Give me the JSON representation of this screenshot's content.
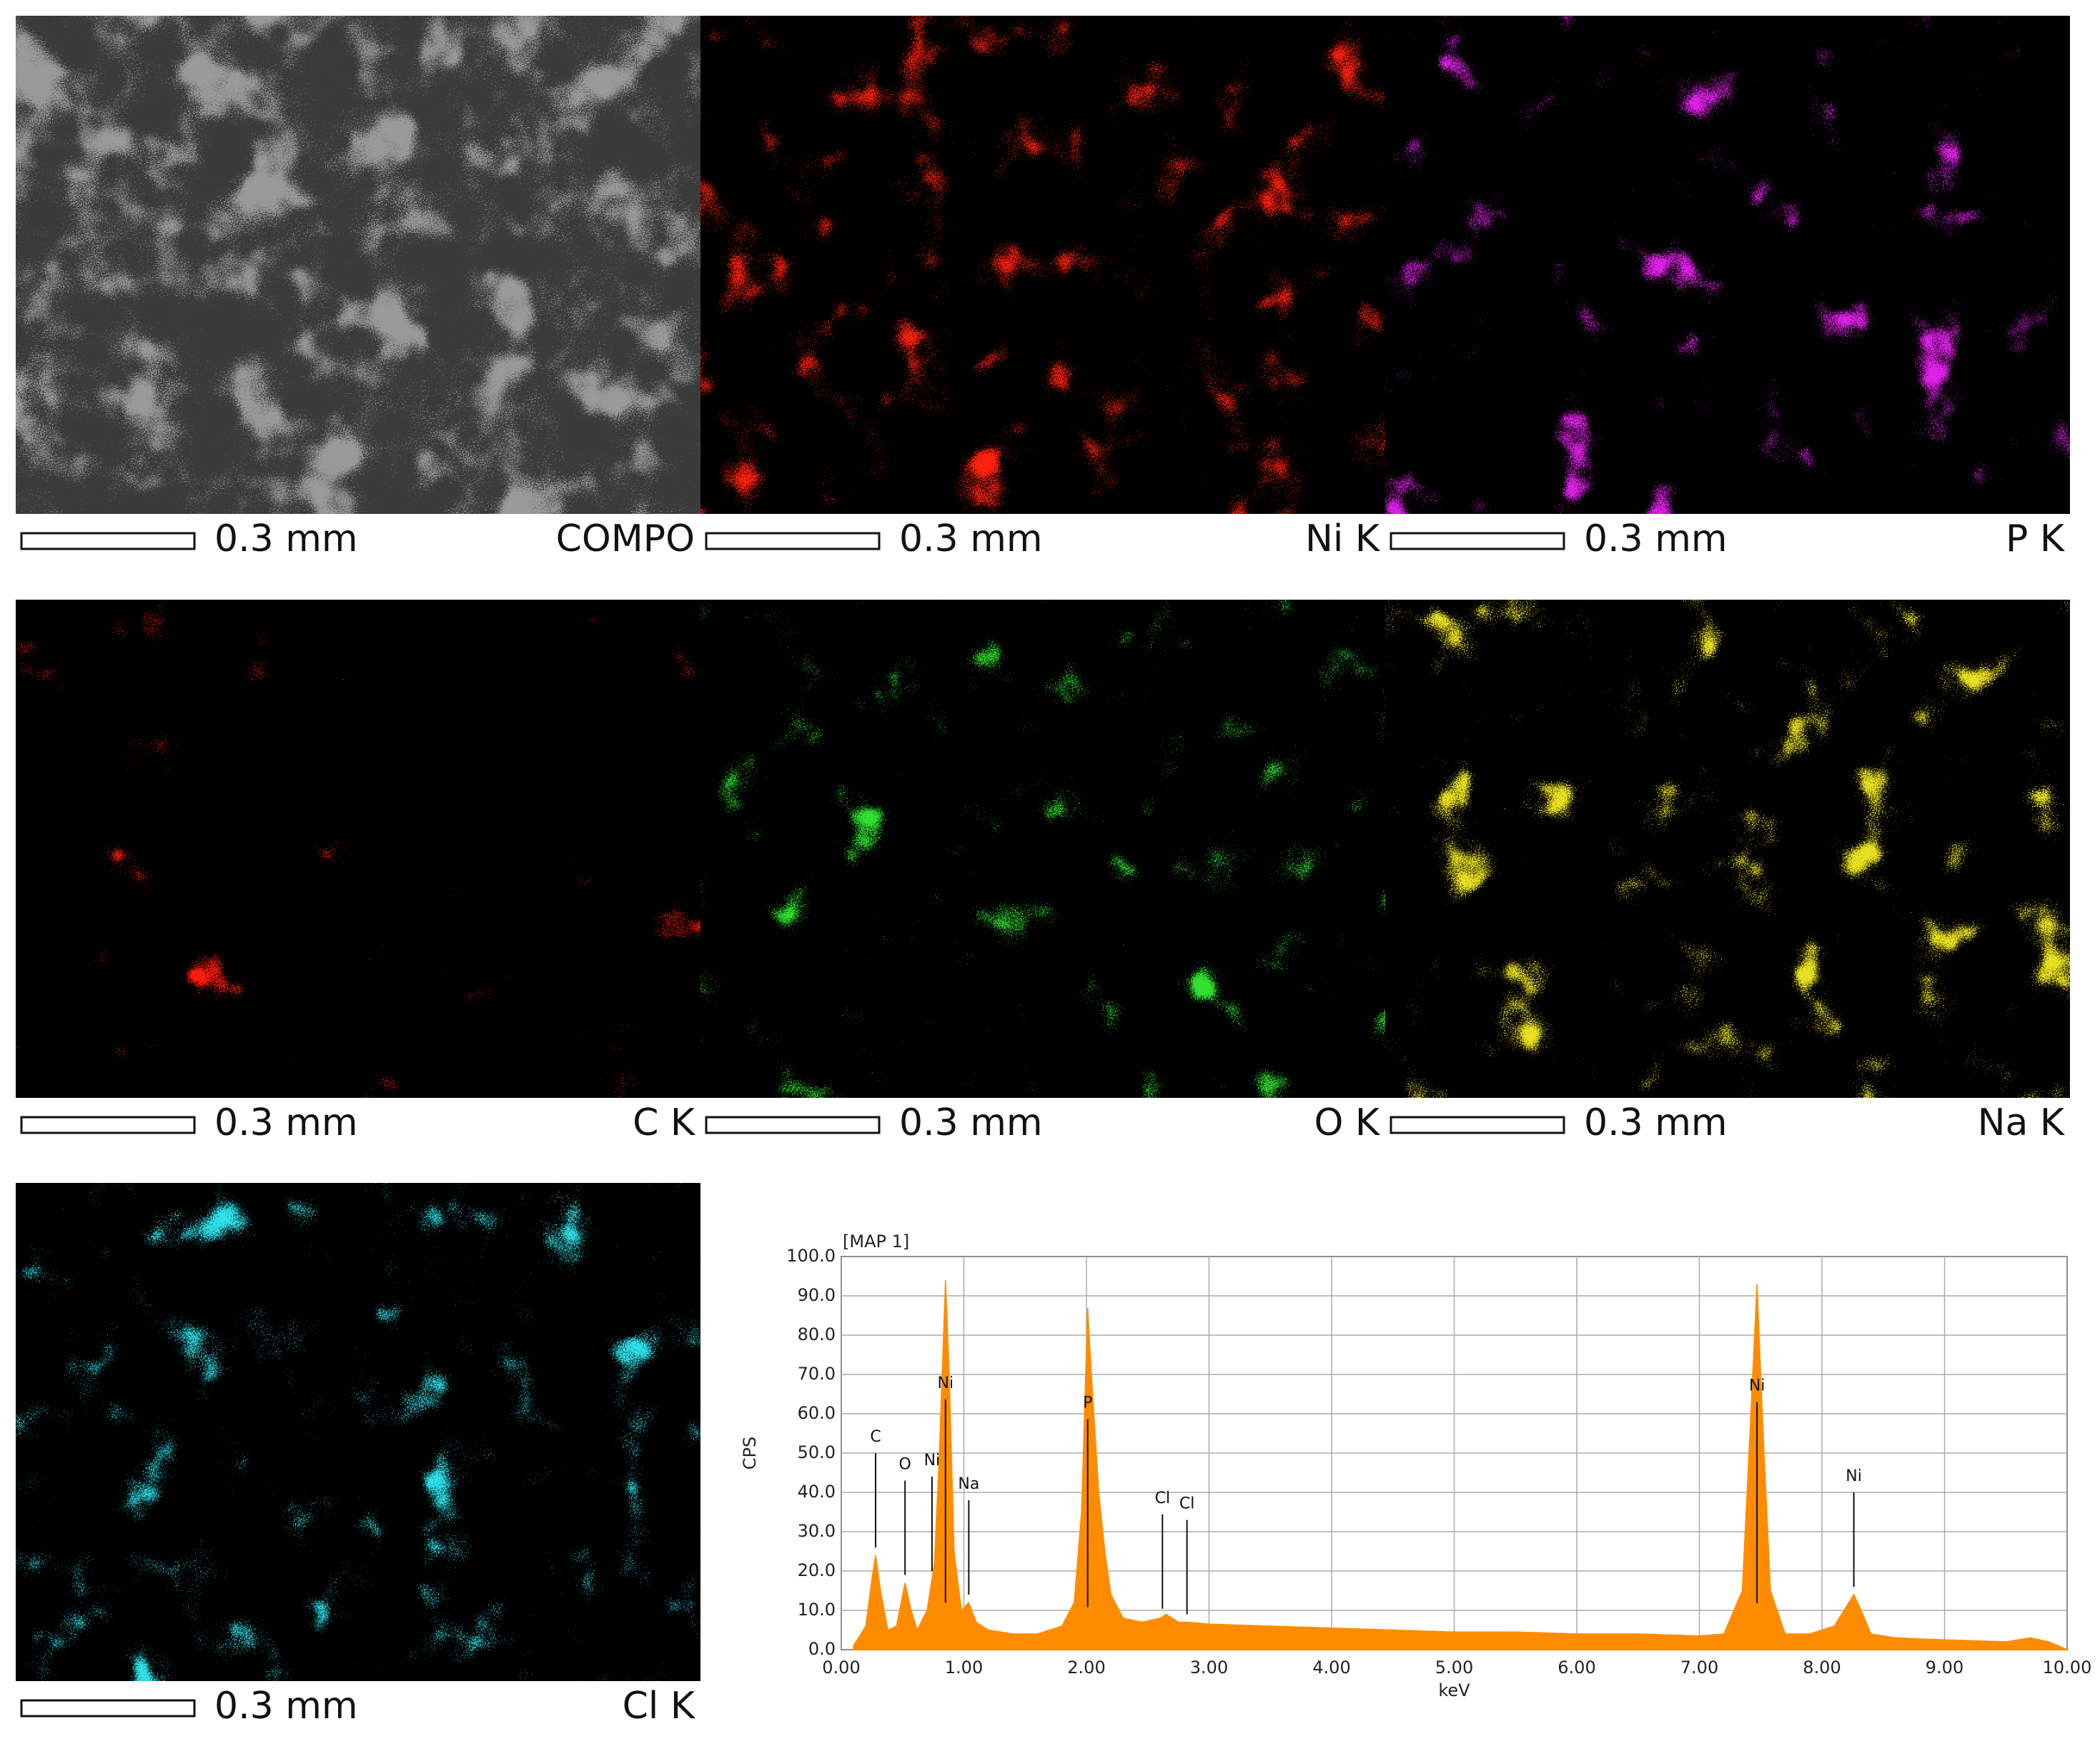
{
  "panels": [
    {
      "label": "COMPO",
      "scale": "0.3 mm",
      "color": "#9a9a9a"
    },
    {
      "label": "Ni K",
      "scale": "0.3 mm",
      "color": "#ff2010"
    },
    {
      "label": "P K",
      "scale": "0.3 mm",
      "color": "#e020e8"
    },
    {
      "label": "C K",
      "scale": "0.3 mm",
      "color": "#ff1a10"
    },
    {
      "label": "O K",
      "scale": "0.3 mm",
      "color": "#30e030"
    },
    {
      "label": "Na K",
      "scale": "0.3 mm",
      "color": "#e8e020"
    },
    {
      "label": "Cl K",
      "scale": "0.3 mm",
      "color": "#30e0e8"
    }
  ],
  "chart_data": {
    "type": "area",
    "title": "[MAP 1]",
    "x_label": "keV",
    "y_label": "CPS",
    "color": "#ff8c00",
    "grid": true,
    "x": [
      0.1,
      0.2,
      0.25,
      0.28,
      0.32,
      0.38,
      0.45,
      0.52,
      0.57,
      0.62,
      0.7,
      0.76,
      0.8,
      0.85,
      0.88,
      0.92,
      0.98,
      1.04,
      1.1,
      1.2,
      1.4,
      1.6,
      1.8,
      1.9,
      1.96,
      2.01,
      2.04,
      2.1,
      2.15,
      2.2,
      2.3,
      2.45,
      2.6,
      2.65,
      2.75,
      2.82,
      3.0,
      3.5,
      4.0,
      4.5,
      5.0,
      5.5,
      6.0,
      6.5,
      7.0,
      7.2,
      7.35,
      7.42,
      7.47,
      7.52,
      7.58,
      7.7,
      7.9,
      8.1,
      8.2,
      8.26,
      8.32,
      8.4,
      8.6,
      9.0,
      9.5,
      9.7,
      9.85,
      10.0
    ],
    "values": [
      1,
      6,
      18,
      24,
      15,
      5,
      6,
      17,
      10,
      5,
      10,
      22,
      50,
      94,
      70,
      25,
      10,
      12,
      7,
      5,
      4,
      4,
      6,
      12,
      35,
      87,
      70,
      40,
      25,
      14,
      8,
      7,
      8,
      9,
      7,
      7,
      6.5,
      6,
      5.5,
      5,
      4.5,
      4.5,
      4,
      4,
      3.5,
      4,
      15,
      60,
      93,
      55,
      15,
      4,
      4,
      6,
      11,
      14,
      10,
      4,
      3,
      2.5,
      2,
      3,
      2,
      0
    ],
    "annotations": [
      {
        "label": "C",
        "x": 0.28
      },
      {
        "label": "O",
        "x": 0.52
      },
      {
        "label": "Ni",
        "x": 0.74
      },
      {
        "label": "Ni",
        "x": 0.85
      },
      {
        "label": "Na",
        "x": 1.04
      },
      {
        "label": "P",
        "x": 2.01
      },
      {
        "label": "Cl",
        "x": 2.62
      },
      {
        "label": "Cl",
        "x": 2.82
      },
      {
        "label": "Ni",
        "x": 7.47
      },
      {
        "label": "Ni",
        "x": 8.26
      }
    ],
    "xlim": [
      0,
      10
    ],
    "xticks": [
      {
        "value": 0,
        "label": "0.00"
      },
      {
        "value": 1,
        "label": "1.00"
      },
      {
        "value": 2,
        "label": "2.00"
      },
      {
        "value": 3,
        "label": "3.00"
      },
      {
        "value": 4,
        "label": "4.00"
      },
      {
        "value": 5,
        "label": "5.00"
      },
      {
        "value": 6,
        "label": "6.00"
      },
      {
        "value": 7,
        "label": "7.00"
      },
      {
        "value": 8,
        "label": "8.00"
      },
      {
        "value": 9,
        "label": "9.00"
      },
      {
        "value": 10,
        "label": "10.00"
      }
    ],
    "ylim": [
      0,
      100
    ],
    "yticks": [
      {
        "value": 0,
        "label": "0.0"
      },
      {
        "value": 10,
        "label": "10.0"
      },
      {
        "value": 20,
        "label": "20.0"
      },
      {
        "value": 30,
        "label": "30.0"
      },
      {
        "value": 40,
        "label": "40.0"
      },
      {
        "value": 50,
        "label": "50.0"
      },
      {
        "value": 60,
        "label": "60.0"
      },
      {
        "value": 70,
        "label": "70.0"
      },
      {
        "value": 80,
        "label": "80.0"
      },
      {
        "value": 90,
        "label": "90.0"
      },
      {
        "value": 100,
        "label": "100.0"
      }
    ]
  }
}
